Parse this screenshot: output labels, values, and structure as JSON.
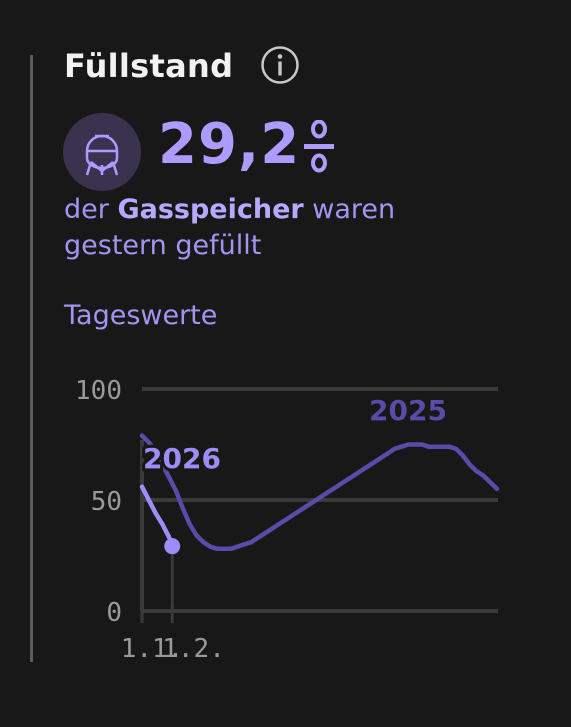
{
  "header": {
    "title": "Füllstand",
    "info_icon": "info-icon"
  },
  "kpi": {
    "icon": "gas-tank-icon",
    "value": "29,2",
    "unit": "%"
  },
  "description": {
    "part1": "der ",
    "bold": "Gasspeicher",
    "part2": " waren gestern gefüllt"
  },
  "subtitle": "Tageswerte",
  "colors": {
    "background": "#181818",
    "accent": "#ad9bff",
    "series_2025": "#5b4aa8",
    "series_2026": "#a08cf8",
    "grid": "#3a3a3a"
  },
  "chart_data": {
    "type": "line",
    "title": "",
    "xlabel": "",
    "ylabel": "",
    "ylim": [
      0,
      100
    ],
    "yticks": [
      "0",
      "50",
      "100"
    ],
    "xticks": [
      "1.1.",
      "1.2."
    ],
    "grid": true,
    "series": [
      {
        "name": "2025",
        "x": [
          "1.1.",
          "8.1.",
          "15.1.",
          "22.1.",
          "29.1.",
          "5.2.",
          "12.2.",
          "19.2.",
          "26.2.",
          "5.3.",
          "12.3.",
          "19.3.",
          "26.3.",
          "2.4.",
          "9.4.",
          "16.4.",
          "23.4.",
          "30.4.",
          "7.5.",
          "14.5.",
          "21.5.",
          "28.5.",
          "4.6.",
          "11.6.",
          "18.6.",
          "25.6.",
          "2.7.",
          "9.7.",
          "16.7.",
          "23.7.",
          "30.7.",
          "6.8.",
          "13.8.",
          "20.8.",
          "27.8.",
          "3.9.",
          "10.9.",
          "17.9.",
          "24.9.",
          "1.10.",
          "8.10.",
          "15.10.",
          "22.10.",
          "29.10.",
          "5.11.",
          "12.11.",
          "19.11.",
          "26.11.",
          "3.12.",
          "10.12.",
          "17.12.",
          "24.12.",
          "31.12."
        ],
        "values": [
          79,
          76,
          72,
          66,
          60,
          54,
          46,
          39,
          34,
          31,
          29,
          28,
          28,
          28,
          29,
          30,
          31,
          33,
          35,
          37,
          39,
          41,
          43,
          45,
          47,
          49,
          51,
          53,
          55,
          57,
          59,
          61,
          63,
          65,
          67,
          69,
          71,
          73,
          74,
          75,
          75,
          75,
          74,
          74,
          74,
          74,
          73,
          70,
          66,
          63,
          61,
          58,
          55
        ]
      },
      {
        "name": "2026",
        "x": [
          "1.1.",
          "8.1.",
          "15.1.",
          "22.1.",
          "29.1.",
          "1.2."
        ],
        "values": [
          56,
          50,
          44,
          39,
          33,
          29.2
        ]
      }
    ]
  }
}
